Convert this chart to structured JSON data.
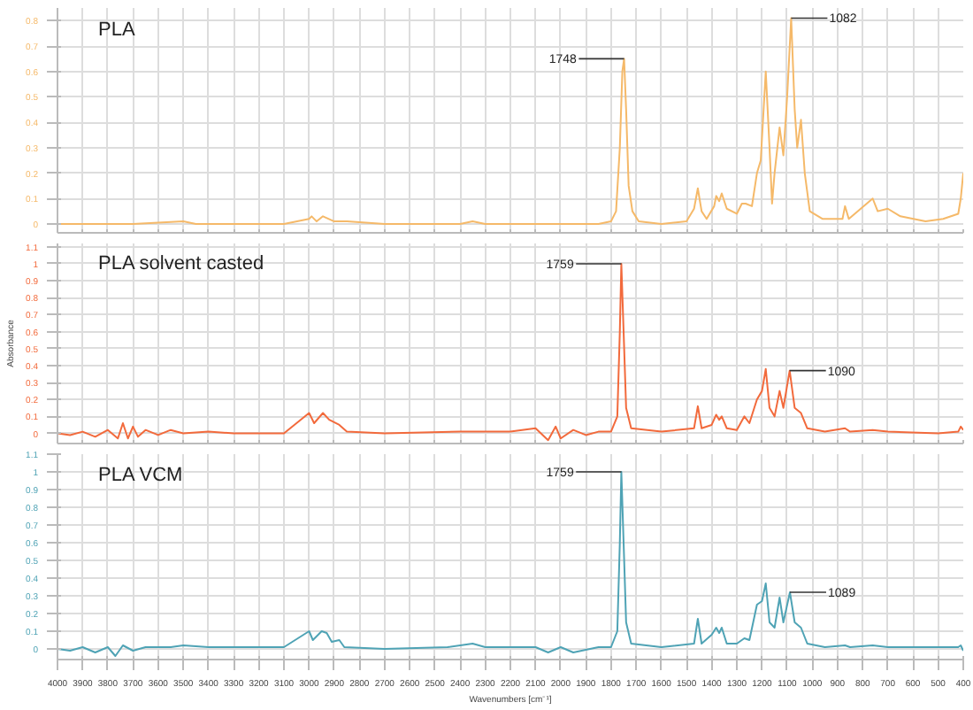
{
  "chart_data": [
    {
      "type": "line",
      "xlim": [
        4000,
        400
      ],
      "ylim": [
        -0.035,
        0.85
      ],
      "yticks": [
        0,
        0.1,
        0.2,
        0.3,
        0.4,
        0.5,
        0.6,
        0.7,
        0.8
      ],
      "xticks": [
        4000,
        3900,
        3800,
        3700,
        3600,
        3500,
        3400,
        3300,
        3200,
        3100,
        3000,
        2900,
        2800,
        2700,
        2600,
        2500,
        2400,
        2300,
        2200,
        2100,
        2000,
        1900,
        1800,
        1700,
        1600,
        1500,
        1400,
        1300,
        1200,
        1100,
        1000,
        900,
        800,
        700,
        600,
        500,
        400
      ],
      "tick_labels": "y",
      "grid": true,
      "x": [
        4000,
        3700,
        3500,
        3450,
        3100,
        3000,
        2990,
        2970,
        2945,
        2900,
        2850,
        2700,
        2400,
        2350,
        2300,
        2000,
        1850,
        1800,
        1780,
        1765,
        1755,
        1748,
        1740,
        1730,
        1715,
        1690,
        1600,
        1500,
        1470,
        1455,
        1440,
        1420,
        1390,
        1382,
        1370,
        1360,
        1340,
        1300,
        1280,
        1265,
        1240,
        1220,
        1205,
        1185,
        1170,
        1160,
        1150,
        1130,
        1115,
        1100,
        1084,
        1070,
        1060,
        1045,
        1030,
        1010,
        960,
        920,
        880,
        870,
        855,
        760,
        740,
        700,
        650,
        550,
        480,
        420,
        410,
        400
      ],
      "series": [
        {
          "name": "PLA",
          "color": "#f5b969",
          "values": [
            0,
            0,
            0.01,
            0,
            0,
            0.02,
            0.03,
            0.01,
            0.03,
            0.01,
            0.01,
            0,
            0,
            0.01,
            0,
            0,
            0,
            0.01,
            0.05,
            0.3,
            0.6,
            0.65,
            0.45,
            0.15,
            0.05,
            0.01,
            0,
            0.01,
            0.06,
            0.14,
            0.05,
            0.02,
            0.07,
            0.11,
            0.09,
            0.12,
            0.06,
            0.04,
            0.08,
            0.08,
            0.07,
            0.2,
            0.25,
            0.6,
            0.3,
            0.08,
            0.2,
            0.38,
            0.27,
            0.5,
            0.81,
            0.45,
            0.3,
            0.41,
            0.2,
            0.05,
            0.02,
            0.02,
            0.02,
            0.07,
            0.02,
            0.1,
            0.05,
            0.06,
            0.03,
            0.01,
            0.02,
            0.04,
            0.1,
            0.2
          ]
        }
      ],
      "annotations": [
        {
          "text": "1748",
          "x": 1748,
          "y": 0.65
        },
        {
          "text": "1082",
          "x": 1084,
          "y": 0.81
        }
      ]
    },
    {
      "type": "line",
      "xlim": [
        4000,
        400
      ],
      "ylim": [
        -0.06,
        1.12
      ],
      "yticks": [
        0,
        0.1,
        0.2,
        0.3,
        0.4,
        0.5,
        0.6,
        0.7,
        0.8,
        0.9,
        1,
        1.1
      ],
      "xticks": [
        4000,
        3900,
        3800,
        3700,
        3600,
        3500,
        3400,
        3300,
        3200,
        3100,
        3000,
        2900,
        2800,
        2700,
        2600,
        2500,
        2400,
        2300,
        2200,
        2100,
        2000,
        1900,
        1800,
        1700,
        1600,
        1500,
        1400,
        1300,
        1200,
        1100,
        1000,
        900,
        800,
        700,
        600,
        500,
        400
      ],
      "tick_labels": "y",
      "grid": true,
      "ylabel": "Absorbance",
      "x": [
        4000,
        3950,
        3900,
        3850,
        3800,
        3760,
        3740,
        3720,
        3700,
        3680,
        3650,
        3600,
        3550,
        3500,
        3400,
        3300,
        3100,
        3000,
        2980,
        2945,
        2920,
        2880,
        2850,
        2700,
        2400,
        2300,
        2200,
        2100,
        2050,
        2020,
        2000,
        1950,
        1900,
        1850,
        1800,
        1775,
        1765,
        1759,
        1750,
        1740,
        1720,
        1600,
        1470,
        1455,
        1440,
        1400,
        1382,
        1370,
        1360,
        1340,
        1300,
        1270,
        1250,
        1220,
        1200,
        1185,
        1170,
        1150,
        1130,
        1115,
        1090,
        1070,
        1045,
        1020,
        950,
        870,
        850,
        760,
        700,
        500,
        420,
        410,
        400
      ],
      "series": [
        {
          "name": "PLA solvent casted",
          "color": "#f26a3c",
          "values": [
            0,
            -0.01,
            0.01,
            -0.02,
            0.02,
            -0.03,
            0.06,
            -0.03,
            0.04,
            -0.02,
            0.02,
            -0.01,
            0.02,
            0,
            0.01,
            0,
            0,
            0.12,
            0.06,
            0.12,
            0.08,
            0.05,
            0.01,
            0,
            0.01,
            0.01,
            0.01,
            0.03,
            -0.04,
            0.04,
            -0.03,
            0.02,
            -0.01,
            0.01,
            0.01,
            0.1,
            0.6,
            1.0,
            0.6,
            0.15,
            0.03,
            0.01,
            0.03,
            0.16,
            0.03,
            0.05,
            0.11,
            0.08,
            0.1,
            0.03,
            0.02,
            0.1,
            0.06,
            0.2,
            0.25,
            0.38,
            0.15,
            0.1,
            0.25,
            0.15,
            0.37,
            0.15,
            0.12,
            0.03,
            0.01,
            0.03,
            0.01,
            0.02,
            0.01,
            0,
            0.01,
            0.04,
            0.02
          ]
        }
      ],
      "annotations": [
        {
          "text": "1759",
          "x": 1759,
          "y": 1.0
        },
        {
          "text": "1090",
          "x": 1090,
          "y": 0.37
        }
      ]
    },
    {
      "type": "line",
      "xlim": [
        4000,
        400
      ],
      "ylim": [
        -0.06,
        1.1
      ],
      "yticks": [
        0,
        0.1,
        0.2,
        0.3,
        0.4,
        0.5,
        0.6,
        0.7,
        0.8,
        0.9,
        1,
        1.1
      ],
      "xticks": [
        4000,
        3900,
        3800,
        3700,
        3600,
        3500,
        3400,
        3300,
        3200,
        3100,
        3000,
        2900,
        2800,
        2700,
        2600,
        2500,
        2400,
        2300,
        2200,
        2100,
        2000,
        1900,
        1800,
        1700,
        1600,
        1500,
        1400,
        1300,
        1200,
        1100,
        1000,
        900,
        800,
        700,
        600,
        500,
        400
      ],
      "grid": true,
      "xlabel": "Wavenumbers [cm⁻¹]",
      "x": [
        4000,
        3950,
        3900,
        3850,
        3800,
        3770,
        3740,
        3700,
        3650,
        3550,
        3500,
        3400,
        3300,
        3100,
        3000,
        2985,
        2950,
        2930,
        2910,
        2880,
        2860,
        2700,
        2450,
        2350,
        2300,
        2100,
        2050,
        2000,
        1950,
        1850,
        1800,
        1775,
        1765,
        1759,
        1750,
        1740,
        1720,
        1600,
        1470,
        1455,
        1440,
        1400,
        1382,
        1370,
        1360,
        1340,
        1300,
        1270,
        1250,
        1220,
        1200,
        1185,
        1170,
        1150,
        1130,
        1115,
        1089,
        1070,
        1045,
        1020,
        950,
        870,
        850,
        760,
        700,
        500,
        420,
        410,
        400
      ],
      "series": [
        {
          "name": "PLA VCM",
          "color": "#4fa3b5",
          "values": [
            0,
            -0.01,
            0.01,
            -0.02,
            0.01,
            -0.04,
            0.02,
            -0.01,
            0.01,
            0.01,
            0.02,
            0.01,
            0.01,
            0.01,
            0.1,
            0.05,
            0.1,
            0.09,
            0.04,
            0.05,
            0.01,
            0,
            0.01,
            0.03,
            0.01,
            0.01,
            -0.02,
            0.01,
            -0.02,
            0.01,
            0.01,
            0.1,
            0.6,
            1.0,
            0.6,
            0.15,
            0.03,
            0.01,
            0.03,
            0.17,
            0.03,
            0.08,
            0.12,
            0.09,
            0.12,
            0.03,
            0.03,
            0.06,
            0.05,
            0.25,
            0.27,
            0.37,
            0.15,
            0.12,
            0.29,
            0.15,
            0.32,
            0.15,
            0.12,
            0.03,
            0.01,
            0.02,
            0.01,
            0.02,
            0.01,
            0.01,
            0.01,
            0.02,
            -0.01
          ]
        }
      ],
      "annotations": [
        {
          "text": "1759",
          "x": 1759,
          "y": 1.0
        },
        {
          "text": "1089",
          "x": 1089,
          "y": 0.32
        }
      ]
    }
  ]
}
